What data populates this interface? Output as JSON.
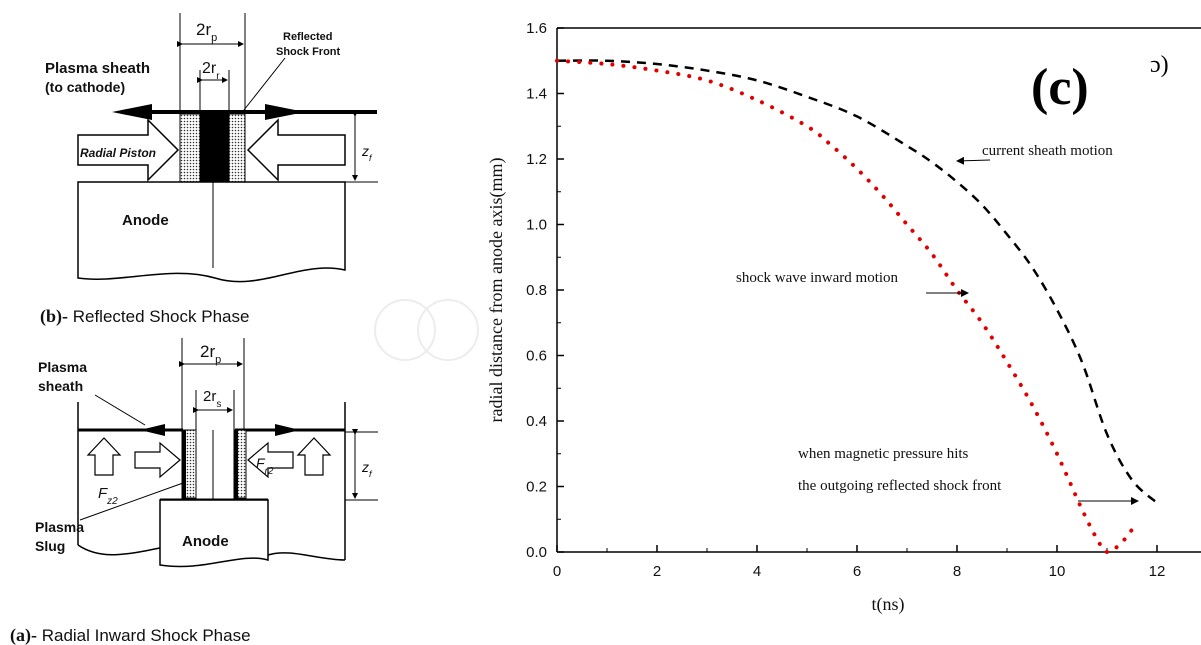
{
  "diagram_b": {
    "label_2rp": "2r",
    "label_2rp_sub": "p",
    "label_2rr": "2r",
    "label_2rr_sub": "r",
    "reflected_line1": "Reflected",
    "reflected_line2": "Shock Front",
    "sheath_line1": "Plasma sheath",
    "sheath_line2": "(to cathode)",
    "piston": "Radial Piston",
    "zf": "z",
    "zf_sub": "f",
    "anode": "Anode",
    "caption_prefix": "(b)-",
    "caption_text": " Reflected Shock Phase"
  },
  "diagram_a": {
    "label_2rp": "2r",
    "label_2rp_sub": "p",
    "label_2rs": "2r",
    "label_2rs_sub": "s",
    "sheath_line1": "Plasma",
    "sheath_line2": "sheath",
    "fz2_left": "F",
    "fz2_left_sub": "z2",
    "fz2_right": "F",
    "fz2_right_sub": "r2",
    "zf": "z",
    "zf_sub": "f",
    "slug_line1": "Plasma",
    "slug_line2": "Slug",
    "anode": "Anode",
    "caption_prefix": "(a)-",
    "caption_text": " Radial Inward Shock Phase"
  },
  "chart_data": {
    "type": "line",
    "panel_label": "(c)",
    "corner_glyph": "ɔ)",
    "xlabel": "t(ns)",
    "ylabel": "radial distance from anode axis(mm)",
    "xlim": [
      0,
      13
    ],
    "ylim": [
      0,
      1.6
    ],
    "xticks": [
      "0",
      "2",
      "4",
      "6",
      "8",
      "10",
      "12"
    ],
    "yticks": [
      "0.0",
      "0.2",
      "0.4",
      "0.6",
      "0.8",
      "1.0",
      "1.2",
      "1.4",
      "1.6"
    ],
    "series": [
      {
        "style": "dashed",
        "color": "#000000",
        "x": [
          0,
          1,
          2,
          3,
          4,
          5,
          6,
          7,
          7.5,
          8,
          8.5,
          9,
          9.5,
          10,
          10.5,
          11,
          11.5,
          12
        ],
        "y": [
          1.5,
          1.5,
          1.49,
          1.47,
          1.44,
          1.39,
          1.33,
          1.24,
          1.19,
          1.13,
          1.06,
          0.97,
          0.87,
          0.74,
          0.58,
          0.36,
          0.22,
          0.15
        ]
      },
      {
        "style": "dotted",
        "color": "#e00000",
        "x": [
          0,
          1,
          2,
          3,
          4,
          5,
          5.5,
          6,
          6.5,
          7,
          7.5,
          8,
          8.5,
          9,
          9.5,
          10,
          10.5,
          10.8,
          11,
          11.3,
          11.6
        ],
        "y": [
          1.5,
          1.49,
          1.47,
          1.44,
          1.38,
          1.3,
          1.24,
          1.17,
          1.09,
          1.0,
          0.91,
          0.8,
          0.7,
          0.58,
          0.45,
          0.3,
          0.13,
          0.04,
          0.0,
          0.03,
          0.09
        ]
      }
    ],
    "annotations": [
      {
        "text": "current sheath motion",
        "x": 8.5,
        "y": 1.22
      },
      {
        "text": "shock wave inward motion",
        "x": 3.6,
        "y": 0.85
      },
      {
        "text": "when magnetic pressure hits",
        "x": 4.8,
        "y": 0.29
      },
      {
        "text": "the outgoing reflected shock front",
        "x": 4.8,
        "y": 0.2
      }
    ]
  }
}
